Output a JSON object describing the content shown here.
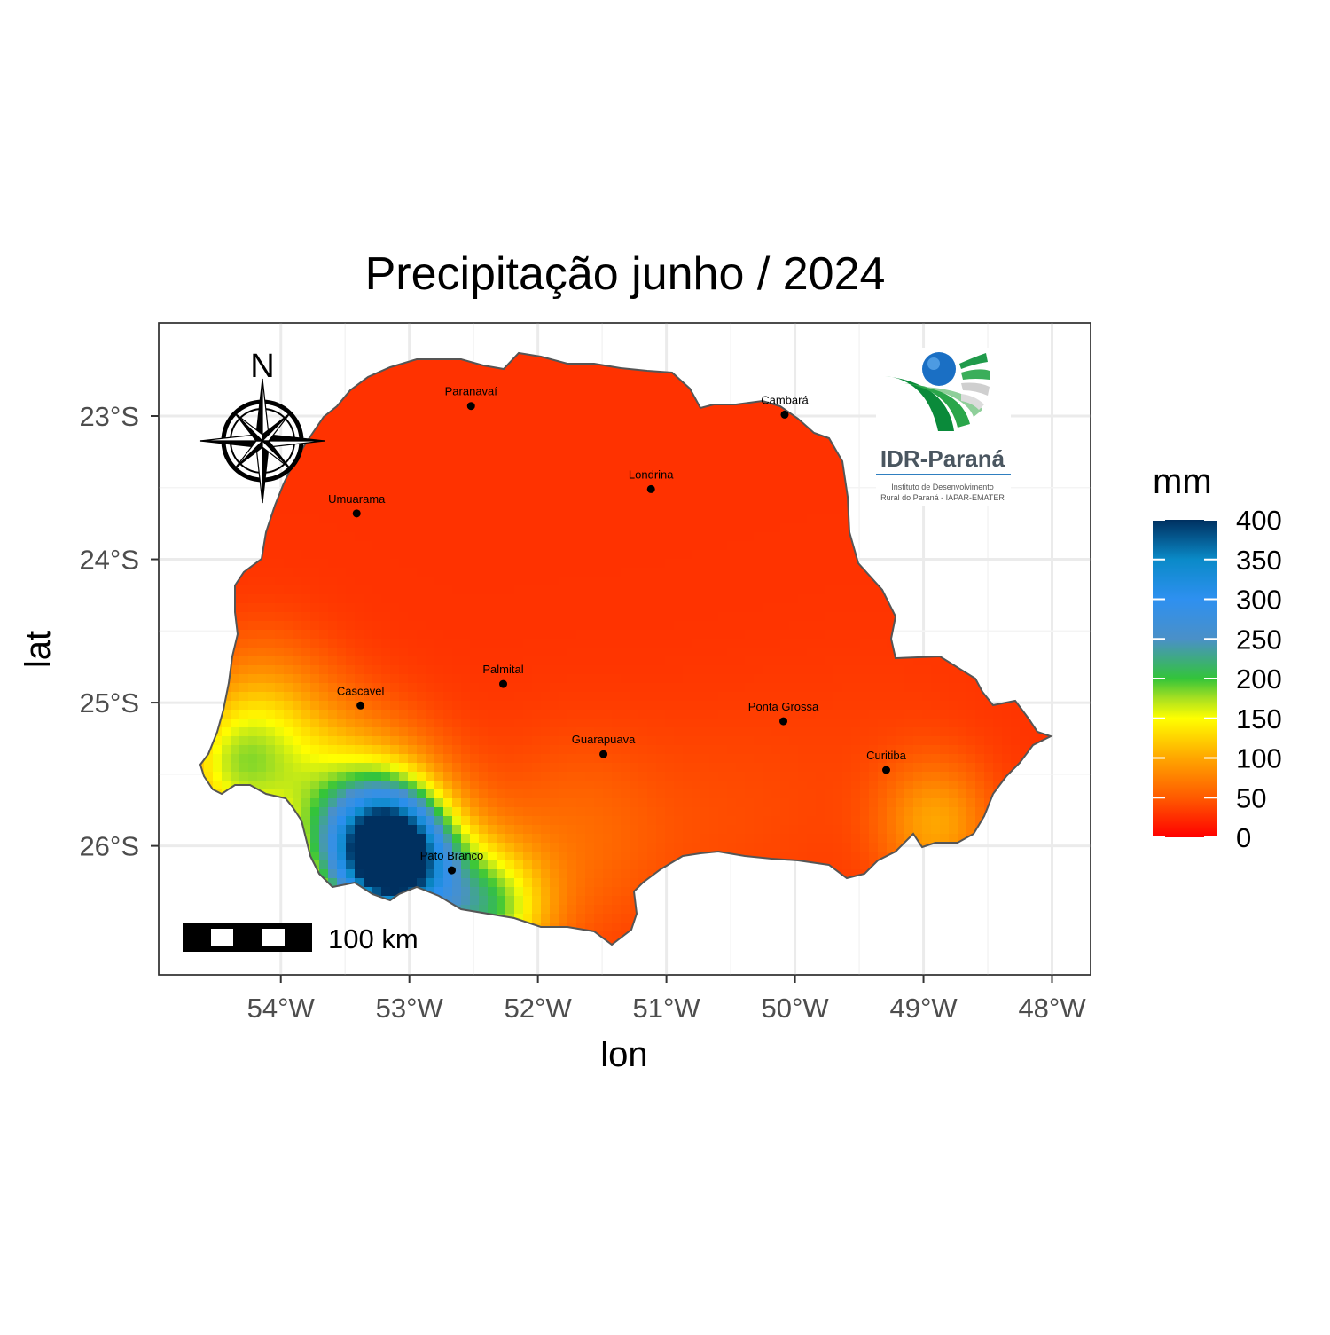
{
  "title": "Precipitação junho / 2024",
  "axes": {
    "x_title": "lon",
    "y_title": "lat",
    "x_ticks": [
      {
        "value": -54,
        "label": "54°W"
      },
      {
        "value": -53,
        "label": "53°W"
      },
      {
        "value": -52,
        "label": "52°W"
      },
      {
        "value": -51,
        "label": "51°W"
      },
      {
        "value": -50,
        "label": "50°W"
      },
      {
        "value": -49,
        "label": "49°W"
      },
      {
        "value": -48,
        "label": "48°W"
      }
    ],
    "y_ticks": [
      {
        "value": -23,
        "label": "23°S"
      },
      {
        "value": -24,
        "label": "24°S"
      },
      {
        "value": -25,
        "label": "25°S"
      },
      {
        "value": -26,
        "label": "26°S"
      }
    ],
    "xlim": [
      -54.95,
      -47.7
    ],
    "ylim": [
      -26.9,
      -22.35
    ],
    "grid": true
  },
  "legend": {
    "title": "mm",
    "placement": "right",
    "ticks": [
      {
        "value": 400,
        "label": "400"
      },
      {
        "value": 350,
        "label": "350"
      },
      {
        "value": 300,
        "label": "300"
      },
      {
        "value": 250,
        "label": "250"
      },
      {
        "value": 200,
        "label": "200"
      },
      {
        "value": 150,
        "label": "150"
      },
      {
        "value": 100,
        "label": "100"
      },
      {
        "value": 50,
        "label": "50"
      },
      {
        "value": 0,
        "label": "0"
      }
    ],
    "range": [
      0,
      400
    ],
    "colors": [
      {
        "value": 0,
        "color": "#ff0000"
      },
      {
        "value": 50,
        "color": "#ff5a00"
      },
      {
        "value": 100,
        "color": "#ffa600"
      },
      {
        "value": 150,
        "color": "#ffff00"
      },
      {
        "value": 175,
        "color": "#a8e021"
      },
      {
        "value": 200,
        "color": "#33c43a"
      },
      {
        "value": 250,
        "color": "#4a90c8"
      },
      {
        "value": 300,
        "color": "#2e90f0"
      },
      {
        "value": 350,
        "color": "#0a8ac8"
      },
      {
        "value": 400,
        "color": "#003060"
      }
    ]
  },
  "cities": [
    {
      "name": "Paranavaí",
      "lon": -52.52,
      "lat": -22.93
    },
    {
      "name": "Cambará",
      "lon": -50.08,
      "lat": -22.99
    },
    {
      "name": "Londrina",
      "lon": -51.12,
      "lat": -23.51
    },
    {
      "name": "Umuarama",
      "lon": -53.41,
      "lat": -23.68
    },
    {
      "name": "Palmital",
      "lon": -52.27,
      "lat": -24.87
    },
    {
      "name": "Cascavel",
      "lon": -53.38,
      "lat": -25.02
    },
    {
      "name": "Ponta Grossa",
      "lon": -50.09,
      "lat": -25.13
    },
    {
      "name": "Guarapuava",
      "lon": -51.49,
      "lat": -25.36
    },
    {
      "name": "Curitiba",
      "lon": -49.29,
      "lat": -25.47
    },
    {
      "name": "Pato Branco",
      "lon": -52.67,
      "lat": -26.17
    }
  ],
  "compass": {
    "label": "N",
    "icon": "compass-rose-icon"
  },
  "scalebar": {
    "label": "100 km"
  },
  "logo": {
    "name": "IDR-Paraná",
    "subtitle_line1": "Instituto de Desenvolvimento",
    "subtitle_line2": "Rural do Paraná - IAPAR-EMATER"
  },
  "precipitation_field": {
    "base_mm": 28,
    "anomalies": [
      {
        "lon": -53.15,
        "lat": -26.05,
        "mm": 385,
        "spread": 0.28
      },
      {
        "lon": -53.4,
        "lat": -25.9,
        "mm": 200,
        "spread": 0.45
      },
      {
        "lon": -52.7,
        "lat": -26.4,
        "mm": 150,
        "spread": 0.35
      },
      {
        "lon": -52.3,
        "lat": -26.45,
        "mm": 120,
        "spread": 0.3
      },
      {
        "lon": -54.15,
        "lat": -25.2,
        "mm": 120,
        "spread": 0.4
      },
      {
        "lon": -54.4,
        "lat": -25.5,
        "mm": 100,
        "spread": 0.3
      },
      {
        "lon": -51.7,
        "lat": -25.95,
        "mm": 60,
        "spread": 0.5
      },
      {
        "lon": -48.9,
        "lat": -25.85,
        "mm": 95,
        "spread": 0.3
      },
      {
        "lon": -49.3,
        "lat": -25.5,
        "mm": 35,
        "spread": 0.6
      },
      {
        "lon": -50.5,
        "lat": -25.8,
        "mm": 40,
        "spread": 0.55
      }
    ]
  }
}
